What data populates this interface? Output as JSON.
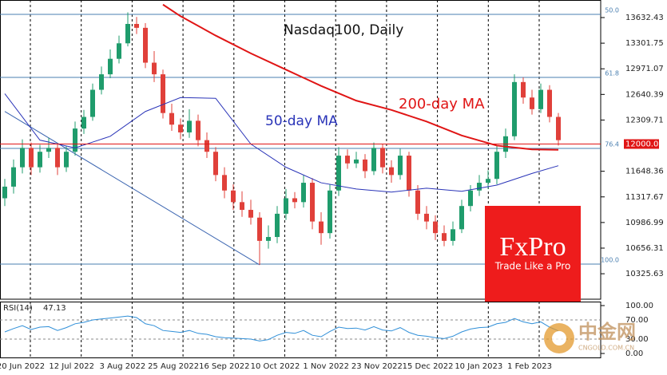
{
  "chart_data": {
    "type": "candlestick",
    "title": "Nasdaq100, Daily",
    "categories": [
      "20 Jun 2022",
      "12 Jul 2022",
      "3 Aug 2022",
      "25 Aug 2022",
      "16 Sep 2022",
      "10 Oct 2022",
      "1 Nov 2022",
      "23 Nov 2022",
      "15 Dec 2022",
      "10 Jan 2023",
      "1 Feb 2023"
    ],
    "up_color": "#1f9c6c",
    "down_color": "#e0403a",
    "ylim": [
      9997,
      13859
    ],
    "yticks": [
      13632.43,
      13301.75,
      12971.07,
      12640.39,
      12309.71,
      11648.36,
      11317.67,
      10986.99,
      10656.31,
      10325.63
    ],
    "ohlc": {
      "open": [
        11300,
        11450,
        11700,
        11950,
        11700,
        11900,
        11950,
        11700,
        11900,
        12200,
        12350,
        12700,
        12900,
        13100,
        13300,
        13550,
        13500,
        13050,
        12900,
        12400,
        12250,
        12150,
        12300,
        12050,
        11900,
        11600,
        11400,
        11250,
        11150,
        11050,
        10750,
        10800,
        11100,
        11300,
        11250,
        11500,
        11000,
        10850,
        11400,
        11850,
        11750,
        11800,
        11650,
        11950,
        11700,
        11600,
        11850,
        11400,
        11100,
        11000,
        10850,
        10750,
        10900,
        11200,
        11400,
        11500,
        11550,
        11900,
        12100,
        12800,
        12600,
        12450,
        12700,
        12350
      ],
      "high": [
        11550,
        11800,
        12060,
        12020,
        11990,
        12080,
        12000,
        11980,
        12290,
        12440,
        12780,
        13000,
        13220,
        13400,
        13700,
        13640,
        13560,
        13200,
        12960,
        12520,
        12330,
        12450,
        12380,
        12150,
        11960,
        11700,
        11480,
        11390,
        11280,
        11120,
        10950,
        11200,
        11420,
        11380,
        11600,
        11560,
        11120,
        11480,
        11960,
        11930,
        11900,
        11870,
        12020,
        12000,
        11790,
        11940,
        11900,
        11470,
        11200,
        11080,
        10950,
        11000,
        11280,
        11470,
        11600,
        11660,
        11980,
        12200,
        12900,
        12860,
        12700,
        12780,
        12760,
        12400
      ],
      "low": [
        11200,
        11360,
        11620,
        11600,
        11630,
        11820,
        11600,
        11640,
        11850,
        12130,
        12300,
        12640,
        12850,
        13040,
        13260,
        13420,
        12980,
        12800,
        12330,
        12170,
        12060,
        12080,
        11970,
        11820,
        11520,
        11300,
        11150,
        11060,
        10960,
        10440,
        10650,
        10720,
        11020,
        11170,
        11180,
        10900,
        10700,
        10780,
        11330,
        11680,
        11690,
        11560,
        11600,
        11620,
        11500,
        11540,
        11320,
        11020,
        10900,
        10760,
        10680,
        10690,
        10850,
        11130,
        11330,
        11420,
        11480,
        11820,
        12050,
        12520,
        12380,
        12400,
        12280,
        11980
      ],
      "close": [
        11450,
        11700,
        11950,
        11700,
        11900,
        11950,
        11700,
        11900,
        12200,
        12350,
        12700,
        12900,
        13100,
        13300,
        13550,
        13500,
        13050,
        12900,
        12400,
        12250,
        12150,
        12300,
        12050,
        11900,
        11600,
        11400,
        11250,
        11150,
        11050,
        10750,
        10800,
        11100,
        11300,
        11250,
        11500,
        11000,
        10850,
        11400,
        11850,
        11750,
        11800,
        11650,
        11950,
        11700,
        11600,
        11850,
        11400,
        11100,
        11000,
        10850,
        10750,
        10900,
        11200,
        11400,
        11500,
        11550,
        11900,
        12100,
        12800,
        12600,
        12450,
        12700,
        12350,
        12050
      ]
    },
    "series": [
      {
        "name": "50-day MA",
        "color": "#2a34b8",
        "x": [
          0,
          4,
          8,
          12,
          16,
          20,
          24,
          28,
          32,
          36,
          40,
          44,
          48,
          52,
          56,
          60,
          63
        ],
        "values": [
          12650,
          12050,
          11950,
          12100,
          12420,
          12600,
          12590,
          12000,
          11700,
          11500,
          11420,
          11380,
          11430,
          11390,
          11470,
          11620,
          11720
        ]
      },
      {
        "name": "200-day MA",
        "color": "#e01515",
        "x": [
          18,
          20,
          24,
          28,
          32,
          36,
          40,
          44,
          48,
          52,
          56,
          60,
          63
        ],
        "values": [
          13800,
          13650,
          13400,
          13170,
          12960,
          12750,
          12560,
          12440,
          12290,
          12110,
          11980,
          11930,
          11925
        ]
      }
    ],
    "trendline": {
      "color": "#3a64b0",
      "x": [
        0,
        29
      ],
      "values": [
        12420,
        10440
      ]
    },
    "levels": [
      {
        "label": "50.0",
        "value": 13673,
        "color": "#4a7fb0"
      },
      {
        "label": "61.8",
        "value": 12860,
        "color": "#4a7fb0"
      },
      {
        "label": "76.4",
        "value": 11943,
        "color": "#4a7fb0"
      },
      {
        "label": "100.0",
        "value": 10450,
        "color": "#4a7fb0"
      }
    ],
    "price_line": {
      "value": 12000,
      "label": "12000.00",
      "color": "#e01515"
    },
    "rsi": {
      "name": "RSI(14)",
      "color": "#2f8fd8",
      "ylim": [
        -8.3,
        108.3
      ],
      "yticks": [
        {
          "value": 100,
          "label": "100.00"
        },
        {
          "value": 70,
          "label": "70.00"
        },
        {
          "value": 30,
          "label": "30.00"
        },
        {
          "value": 0,
          "label": "0.00"
        }
      ],
      "values": [
        45,
        52,
        58,
        50,
        55,
        56,
        48,
        54,
        62,
        65,
        70,
        72,
        74,
        76,
        78,
        75,
        62,
        58,
        48,
        46,
        44,
        48,
        42,
        40,
        35,
        33,
        32,
        31,
        30,
        26,
        29,
        38,
        44,
        42,
        48,
        38,
        35,
        46,
        55,
        52,
        53,
        49,
        56,
        49,
        47,
        54,
        44,
        38,
        36,
        33,
        31,
        36,
        45,
        51,
        54,
        55,
        62,
        65,
        73,
        66,
        62,
        66,
        55,
        47.13
      ]
    },
    "logo": {
      "brand": "FxPro",
      "tagline": "Trade Like a Pro"
    },
    "watermark": {
      "name": "中金网",
      "site": "CNGOLD.COM.CN"
    }
  }
}
